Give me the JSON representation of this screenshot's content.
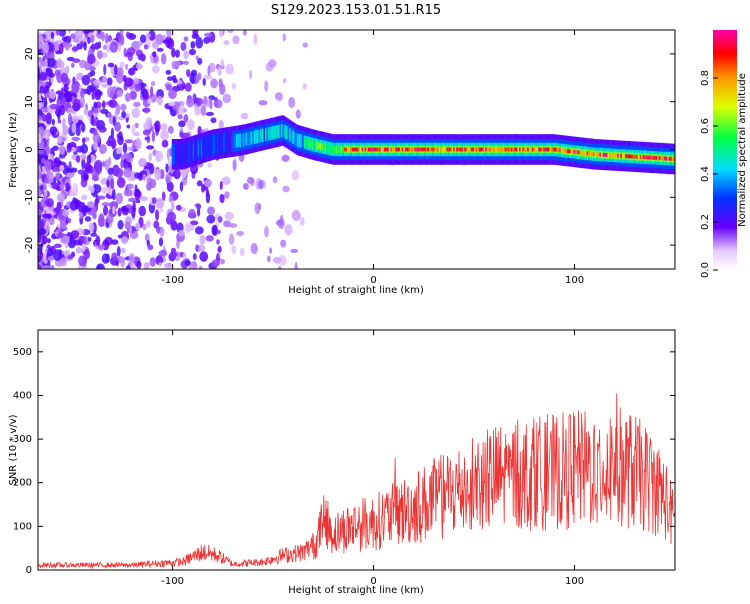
{
  "title": "S129.2023.153.01.51.R15",
  "chart_data": [
    {
      "type": "heatmap",
      "xlabel": "Height of straight line (km)",
      "ylabel": "Frequency (Hz)",
      "xlim": [
        -167,
        150
      ],
      "ylim": [
        -25,
        25
      ],
      "x_ticks": [
        -100,
        0,
        100
      ],
      "y_ticks": [
        -20,
        -10,
        0,
        10,
        20
      ],
      "colorbar": {
        "label": "Normalized spectral amplitude",
        "range": [
          0,
          1
        ],
        "ticks": [
          0.0,
          0.2,
          0.4,
          0.6,
          0.8
        ],
        "tick_labels": [
          "0.0",
          "0.2",
          "0.4",
          "0.6",
          "0.8"
        ]
      },
      "ridge": {
        "description_points": [
          [
            -95,
            -1
          ],
          [
            -80,
            1
          ],
          [
            -65,
            2
          ],
          [
            -55,
            3
          ],
          [
            -45,
            4
          ],
          [
            -38,
            2
          ],
          [
            -30,
            1
          ],
          [
            -20,
            0
          ],
          [
            0,
            0
          ],
          [
            50,
            0
          ],
          [
            90,
            0
          ],
          [
            110,
            -1
          ],
          [
            130,
            -1.5
          ],
          [
            150,
            -2
          ]
        ],
        "peak_amplitude": 1.0
      },
      "grid": false
    },
    {
      "type": "line",
      "xlabel": "Height of straight line (km)",
      "ylabel": "SNR (10 * v/v)",
      "xlim": [
        -167,
        150
      ],
      "ylim": [
        0,
        550
      ],
      "x_ticks": [
        -100,
        0,
        100
      ],
      "y_ticks": [
        0,
        100,
        200,
        300,
        400,
        500
      ],
      "color": "#ee3333",
      "envelope": [
        [
          -167,
          15
        ],
        [
          -120,
          15
        ],
        [
          -95,
          25
        ],
        [
          -85,
          55
        ],
        [
          -78,
          45
        ],
        [
          -70,
          18
        ],
        [
          -55,
          25
        ],
        [
          -45,
          45
        ],
        [
          -35,
          55
        ],
        [
          -28,
          85
        ],
        [
          -25,
          160
        ],
        [
          -20,
          110
        ],
        [
          -10,
          135
        ],
        [
          0,
          145
        ],
        [
          10,
          170
        ],
        [
          20,
          190
        ],
        [
          30,
          215
        ],
        [
          40,
          240
        ],
        [
          50,
          265
        ],
        [
          60,
          280
        ],
        [
          70,
          290
        ],
        [
          80,
          295
        ],
        [
          90,
          300
        ],
        [
          100,
          305
        ],
        [
          110,
          310
        ],
        [
          120,
          320
        ],
        [
          130,
          300
        ],
        [
          140,
          260
        ],
        [
          145,
          220
        ],
        [
          150,
          140
        ]
      ],
      "grid": false
    }
  ]
}
